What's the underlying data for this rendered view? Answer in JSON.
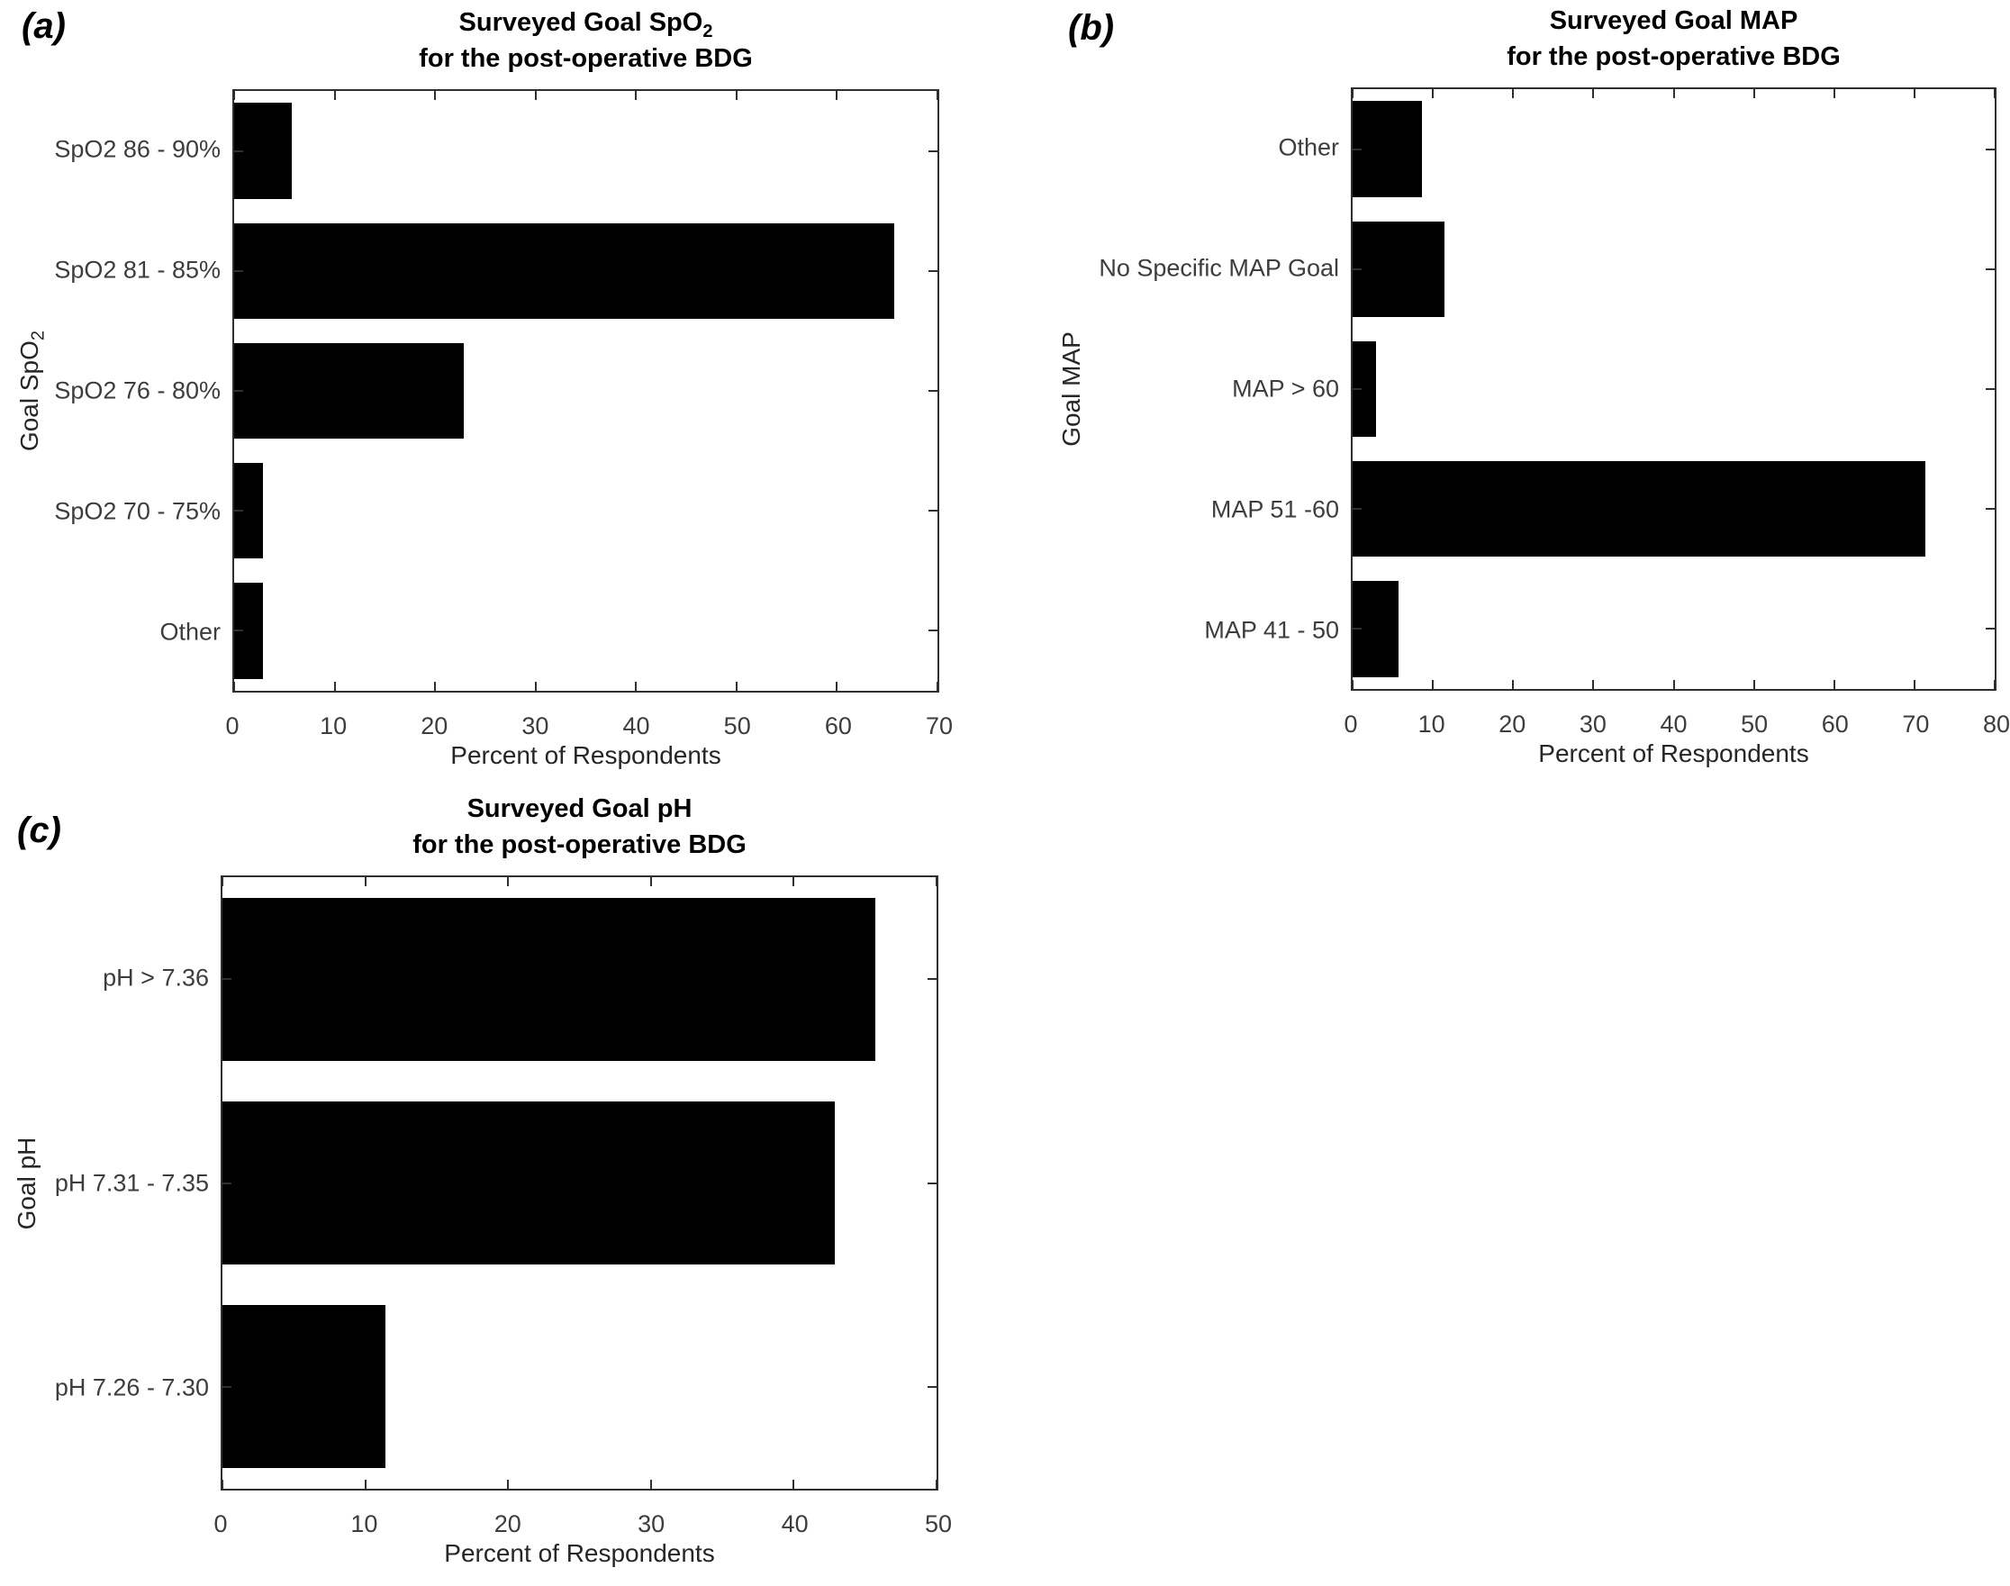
{
  "colors": {
    "bar": "#000000",
    "axis_line": "#2f2f2f",
    "tick_text": "#3d3d3d",
    "title_text": "#000000",
    "background": "#ffffff"
  },
  "chart_data": [
    {
      "panel_label": "(a)",
      "type": "bar",
      "orientation": "horizontal",
      "title_line1": {
        "main": "Surveyed Goal SpO",
        "sub": "2"
      },
      "title_line2": "for the post-operative BDG",
      "ylabel": {
        "main": "Goal SpO",
        "sub": "2"
      },
      "xlabel": "Percent of Respondents",
      "categories": [
        "SpO2 86 - 90%",
        "SpO2 81 - 85%",
        "SpO2 76 - 80%",
        "SpO2 70 - 75%",
        "Other"
      ],
      "values": [
        5.7,
        65.7,
        22.9,
        2.9,
        2.9
      ],
      "xlim": [
        0,
        70
      ],
      "xticks": [
        0,
        10,
        20,
        30,
        40,
        50,
        60,
        70
      ],
      "grid": false,
      "legend": null,
      "bar_height_fraction": 0.8
    },
    {
      "panel_label": "(b)",
      "type": "bar",
      "orientation": "horizontal",
      "title_line1": {
        "main": "Surveyed Goal MAP",
        "sub": ""
      },
      "title_line2": "for the post-operative BDG",
      "ylabel": {
        "main": "Goal MAP",
        "sub": ""
      },
      "xlabel": "Percent of Respondents",
      "categories": [
        "Other",
        "No Specific MAP Goal",
        "MAP > 60",
        "MAP 51 -60",
        "MAP 41 - 50"
      ],
      "values": [
        8.6,
        11.4,
        2.9,
        71.4,
        5.7
      ],
      "xlim": [
        0,
        80
      ],
      "xticks": [
        0,
        10,
        20,
        30,
        40,
        50,
        60,
        70,
        80
      ],
      "grid": false,
      "legend": null,
      "bar_height_fraction": 0.8
    },
    {
      "panel_label": "(c)",
      "type": "bar",
      "orientation": "horizontal",
      "title_line1": {
        "main": "Surveyed Goal pH",
        "sub": ""
      },
      "title_line2": "for the post-operative BDG",
      "ylabel": {
        "main": "Goal pH",
        "sub": ""
      },
      "xlabel": "Percent of Respondents",
      "categories": [
        "pH > 7.36",
        "pH 7.31 - 7.35",
        "pH 7.26 - 7.30"
      ],
      "values": [
        45.7,
        42.9,
        11.4
      ],
      "xlim": [
        0,
        50
      ],
      "xticks": [
        0,
        10,
        20,
        30,
        40,
        50
      ],
      "grid": false,
      "legend": null,
      "bar_height_fraction": 0.8
    }
  ]
}
